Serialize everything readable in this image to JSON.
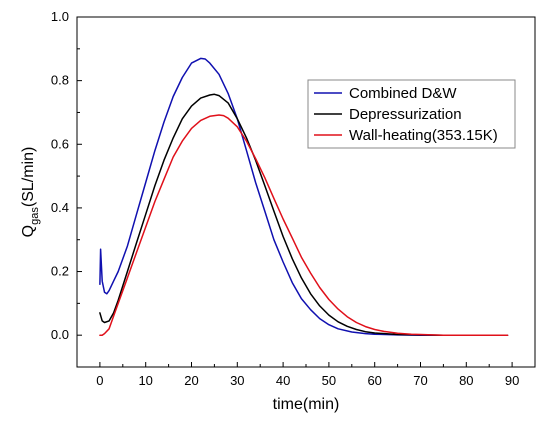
{
  "chart_data": {
    "type": "line",
    "xlabel": "time(min)",
    "ylabel": {
      "main": "Q",
      "sub": "gas",
      "suffix": "(SL/min)"
    },
    "xlim": [
      -5,
      95
    ],
    "ylim": [
      -0.1,
      1.0
    ],
    "x_ticks": [
      0,
      10,
      20,
      30,
      40,
      50,
      60,
      70,
      80,
      90
    ],
    "y_ticks": [
      0.0,
      0.2,
      0.4,
      0.6,
      0.8,
      1.0
    ],
    "x_tick_labels": [
      "0",
      "10",
      "20",
      "30",
      "40",
      "50",
      "60",
      "70",
      "80",
      "90"
    ],
    "y_tick_labels": [
      "0.0",
      "0.2",
      "0.4",
      "0.6",
      "0.8",
      "1.0"
    ],
    "grid": false,
    "legend_position": "top-right",
    "series": [
      {
        "name": "Combined D&W",
        "color": "#1010b0",
        "x": [
          0,
          0.15,
          0.5,
          1,
          1.5,
          2,
          3,
          4,
          6,
          8,
          10,
          12,
          14,
          16,
          18,
          20,
          22,
          23,
          24,
          26,
          28,
          30,
          32,
          34,
          36,
          38,
          40,
          42,
          44,
          46,
          48,
          50,
          52,
          55,
          58,
          60,
          65,
          70,
          75,
          80,
          85,
          89
        ],
        "values": [
          0.16,
          0.27,
          0.17,
          0.135,
          0.13,
          0.14,
          0.17,
          0.2,
          0.28,
          0.38,
          0.48,
          0.58,
          0.67,
          0.75,
          0.81,
          0.855,
          0.87,
          0.868,
          0.855,
          0.82,
          0.76,
          0.68,
          0.58,
          0.48,
          0.39,
          0.3,
          0.23,
          0.165,
          0.115,
          0.08,
          0.052,
          0.033,
          0.02,
          0.01,
          0.005,
          0.003,
          0.001,
          0.0,
          0.0,
          0.0,
          0.0,
          0.0
        ]
      },
      {
        "name": "Depressurization",
        "color": "#000000",
        "x": [
          0,
          0.5,
          1,
          2,
          3,
          4,
          6,
          8,
          10,
          12,
          14,
          16,
          18,
          20,
          22,
          24,
          25,
          26,
          28,
          30,
          32,
          34,
          36,
          38,
          40,
          42,
          44,
          46,
          48,
          50,
          52,
          54,
          56,
          58,
          60,
          65,
          70,
          75,
          80,
          85,
          89
        ],
        "values": [
          0.07,
          0.045,
          0.04,
          0.045,
          0.07,
          0.11,
          0.2,
          0.29,
          0.38,
          0.47,
          0.55,
          0.62,
          0.68,
          0.72,
          0.745,
          0.755,
          0.757,
          0.753,
          0.73,
          0.68,
          0.62,
          0.55,
          0.47,
          0.39,
          0.31,
          0.24,
          0.18,
          0.13,
          0.092,
          0.063,
          0.042,
          0.028,
          0.018,
          0.011,
          0.007,
          0.002,
          0.001,
          0.0,
          0.0,
          0.0,
          0.0
        ]
      },
      {
        "name": "Wall-heating(353.15K)",
        "color": "#e0101a",
        "x": [
          0,
          0.5,
          1,
          2,
          3,
          4,
          6,
          8,
          10,
          12,
          14,
          16,
          18,
          20,
          22,
          24,
          26,
          27,
          28,
          30,
          32,
          34,
          36,
          38,
          40,
          42,
          44,
          46,
          48,
          50,
          52,
          54,
          56,
          58,
          60,
          62,
          65,
          68,
          70,
          75,
          80,
          85,
          89
        ],
        "values": [
          0.0,
          0.0,
          0.005,
          0.02,
          0.06,
          0.1,
          0.18,
          0.26,
          0.34,
          0.42,
          0.49,
          0.56,
          0.61,
          0.65,
          0.675,
          0.688,
          0.692,
          0.69,
          0.682,
          0.655,
          0.61,
          0.555,
          0.495,
          0.43,
          0.365,
          0.305,
          0.245,
          0.195,
          0.15,
          0.112,
          0.082,
          0.058,
          0.04,
          0.027,
          0.018,
          0.012,
          0.006,
          0.003,
          0.002,
          0.0,
          0.0,
          0.0,
          0.0
        ]
      }
    ]
  }
}
